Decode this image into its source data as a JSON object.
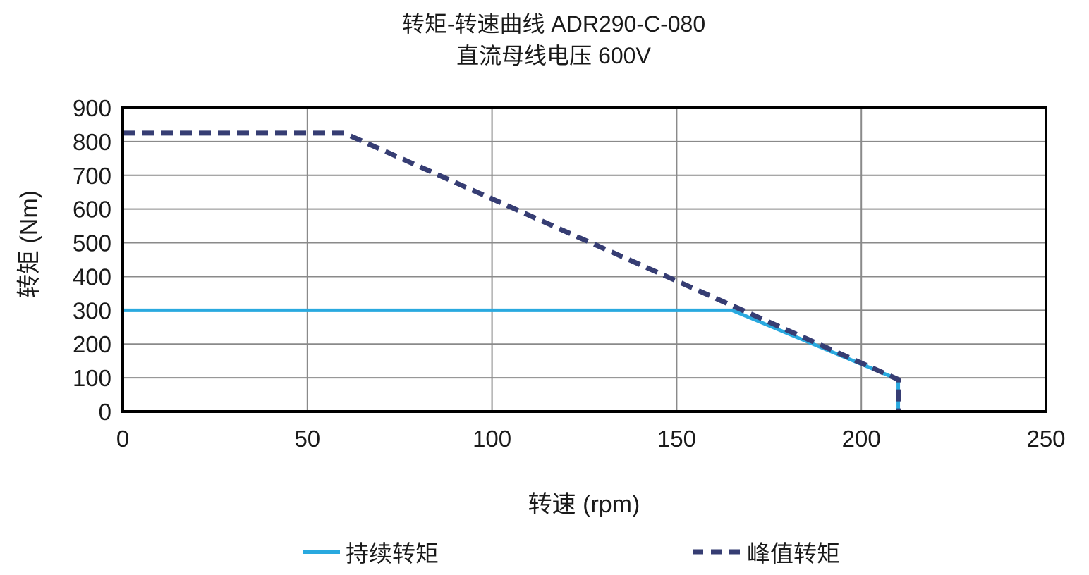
{
  "title": {
    "line1": "转矩-转速曲线 ADR290-C-080",
    "line2": "直流母线电压 600V"
  },
  "chart_data": {
    "type": "line",
    "title": "转矩-转速曲线 ADR290-C-080",
    "subtitle": "直流母线电压 600V",
    "xlabel": "转速 (rpm)",
    "ylabel": "转矩 (Nm)",
    "xlim": [
      0,
      250
    ],
    "ylim": [
      0,
      900
    ],
    "x_ticks": [
      0,
      50,
      100,
      150,
      200,
      250
    ],
    "y_ticks": [
      0,
      100,
      200,
      300,
      400,
      500,
      600,
      700,
      800,
      900
    ],
    "grid": true,
    "legend_position": "bottom",
    "series": [
      {
        "name": "持续转矩",
        "style": "solid",
        "color": "#29A9DF",
        "points": [
          [
            0,
            300
          ],
          [
            165,
            300
          ],
          [
            210,
            95
          ],
          [
            210,
            0
          ]
        ]
      },
      {
        "name": "峰值转矩",
        "style": "dashed",
        "color": "#363D73",
        "points": [
          [
            0,
            825
          ],
          [
            60,
            825
          ],
          [
            210,
            95
          ],
          [
            210,
            0
          ]
        ]
      }
    ]
  },
  "colors": {
    "continuous_line": "#29A9DF",
    "peak_line": "#363D73",
    "gridline": "#8a8a8a",
    "axis_border": "#000000",
    "text": "#1a1a1a"
  }
}
